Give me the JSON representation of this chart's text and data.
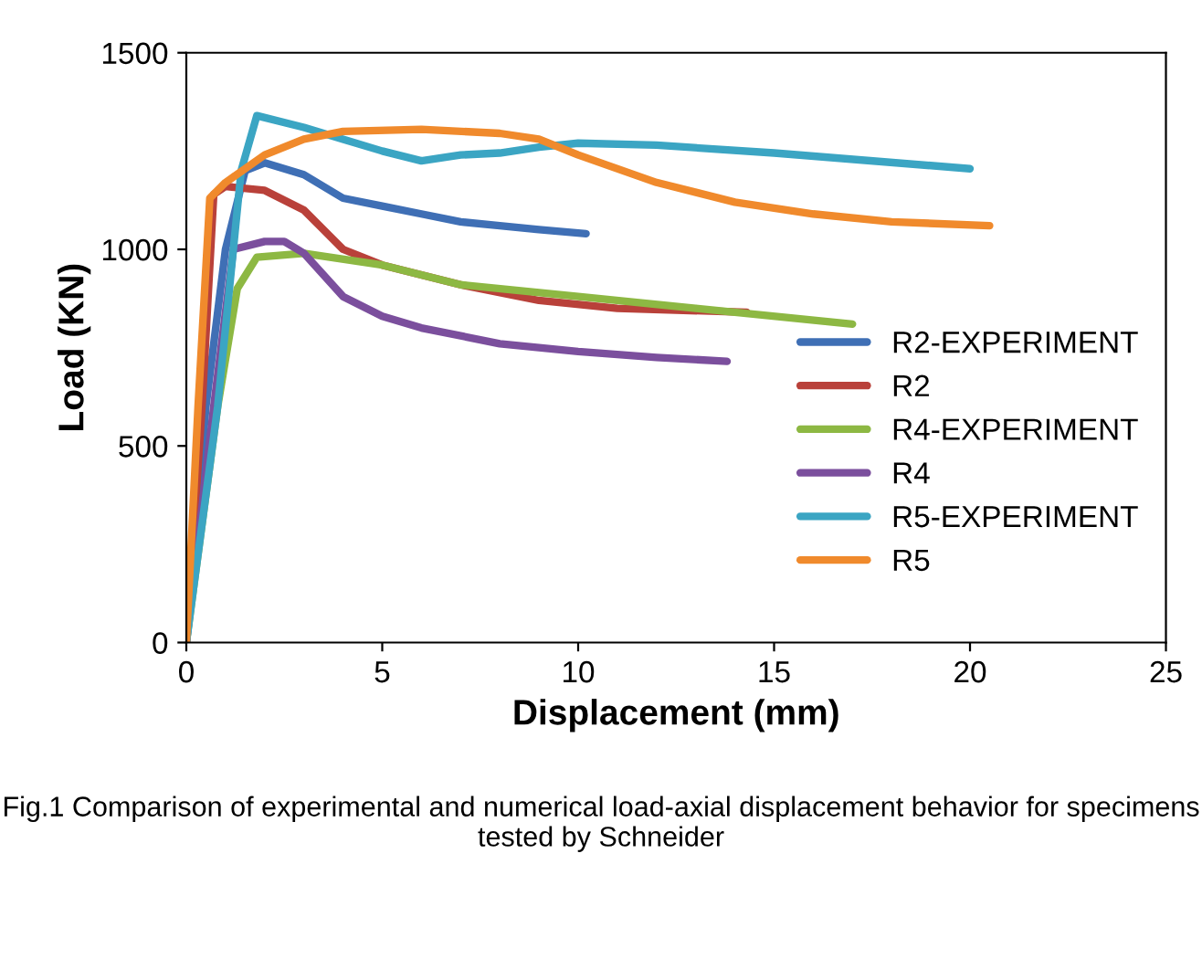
{
  "chart_data": {
    "type": "line",
    "xlabel": "Displacement (mm)",
    "ylabel": "Load (KN)",
    "xlim": [
      0,
      25
    ],
    "ylim": [
      0,
      1500
    ],
    "xticks": [
      0,
      5,
      10,
      15,
      20,
      25
    ],
    "yticks": [
      0,
      500,
      1000,
      1500
    ],
    "grid": false,
    "legend": "right",
    "marker": "none",
    "line_style": "solid",
    "annotations": [
      "Fig.1 Comparison of experimental and numerical load-axial displacement behavior for specimens tested by Schneider"
    ],
    "series": [
      {
        "name": "R2-EXPERIMENT",
        "color": "#3f6fb5",
        "x": [
          0,
          0.5,
          1.0,
          1.5,
          2,
          3,
          4,
          5,
          6,
          7,
          8,
          9,
          10.2
        ],
        "values": [
          0,
          600,
          1000,
          1200,
          1220,
          1190,
          1130,
          1110,
          1090,
          1070,
          1060,
          1050,
          1040
        ]
      },
      {
        "name": "R2",
        "color": "#b9413a",
        "x": [
          0,
          0.4,
          0.7,
          1,
          2,
          3,
          4,
          5,
          7,
          9,
          11,
          14.3
        ],
        "values": [
          0,
          600,
          1140,
          1160,
          1150,
          1100,
          1000,
          960,
          910,
          870,
          850,
          840
        ]
      },
      {
        "name": "R4-EXPERIMENT",
        "color": "#8db843",
        "x": [
          0,
          0.8,
          1.3,
          1.8,
          3,
          5,
          7,
          10,
          13,
          17
        ],
        "values": [
          0,
          600,
          900,
          980,
          990,
          960,
          910,
          880,
          850,
          810
        ]
      },
      {
        "name": "R4",
        "color": "#7b4f9d",
        "x": [
          0,
          0.7,
          1.2,
          2,
          2.5,
          3,
          4,
          5,
          6,
          8,
          10,
          12,
          13.8
        ],
        "values": [
          0,
          600,
          1000,
          1020,
          1020,
          990,
          880,
          830,
          800,
          760,
          740,
          725,
          715
        ]
      },
      {
        "name": "R5-EXPERIMENT",
        "color": "#3ba5c3",
        "x": [
          0,
          0.8,
          1.4,
          1.8,
          3,
          4,
          5,
          6,
          7,
          8,
          9,
          10,
          12,
          15,
          20
        ],
        "values": [
          0,
          600,
          1200,
          1340,
          1310,
          1280,
          1250,
          1225,
          1240,
          1245,
          1260,
          1270,
          1265,
          1245,
          1205
        ]
      },
      {
        "name": "R5",
        "color": "#f08a2c",
        "x": [
          0,
          0.3,
          0.6,
          1,
          2,
          3,
          4,
          6,
          8,
          9,
          10,
          12,
          14,
          16,
          18,
          20.5
        ],
        "values": [
          0,
          600,
          1130,
          1170,
          1240,
          1280,
          1300,
          1305,
          1295,
          1280,
          1240,
          1170,
          1120,
          1090,
          1070,
          1060
        ]
      }
    ]
  }
}
